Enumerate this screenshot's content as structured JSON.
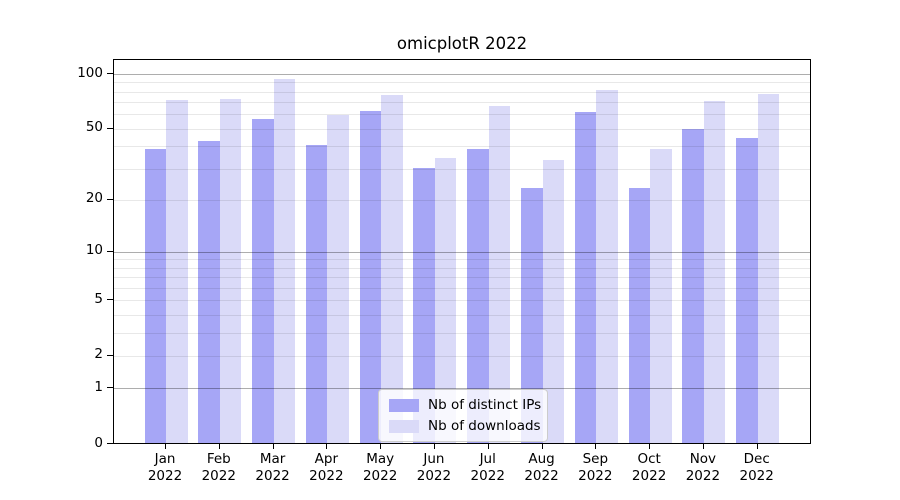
{
  "chart_data": {
    "type": "bar",
    "title": "omicplotR 2022",
    "categories": [
      "Jan",
      "Feb",
      "Mar",
      "Apr",
      "May",
      "Jun",
      "Jul",
      "Aug",
      "Sep",
      "Oct",
      "Nov",
      "Dec"
    ],
    "category_year_label": "2022",
    "series": [
      {
        "name": "Nb of distinct IPs",
        "color": "#a6a6f6",
        "values": [
          38,
          42,
          56,
          40,
          62,
          30,
          38,
          23,
          61,
          23,
          49,
          44
        ]
      },
      {
        "name": "Nb of downloads",
        "color": "#dadaf8",
        "values": [
          71,
          72,
          93,
          59,
          76,
          34,
          66,
          33,
          81,
          38,
          70,
          77
        ]
      }
    ],
    "y_axis": {
      "scale": "log1p",
      "tick_labels": [
        0,
        1,
        2,
        5,
        10,
        20,
        50,
        100
      ],
      "major_gridlines": [
        1,
        10,
        100
      ],
      "minor_gridlines": [
        2,
        3,
        4,
        5,
        6,
        7,
        8,
        9,
        20,
        30,
        40,
        50,
        60,
        70,
        80,
        90
      ],
      "min": 0,
      "max": 100
    },
    "legend": {
      "position": "inside-bottom-center"
    },
    "grid": true
  },
  "style": {
    "background": "#ffffff",
    "axis_color": "#000000",
    "major_grid_color": "#adadad",
    "minor_grid_color": "#e9e9e9",
    "text_color": "#000000"
  }
}
